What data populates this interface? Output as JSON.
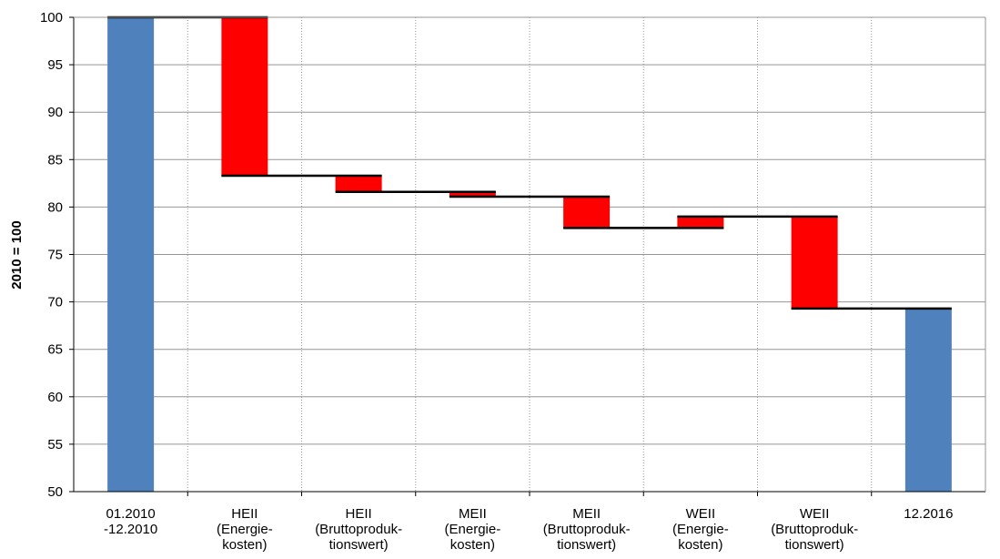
{
  "chart_data": {
    "type": "bar",
    "subtype": "waterfall",
    "ylabel": "2010 = 100",
    "xlabel": "",
    "ylim": [
      50,
      100
    ],
    "yticks": [
      50,
      55,
      60,
      65,
      70,
      75,
      80,
      85,
      90,
      95,
      100
    ],
    "grid": true,
    "categories": [
      [
        "01.2010",
        "-12.2010"
      ],
      [
        "HEII",
        "(Energie-",
        "kosten)"
      ],
      [
        "HEII",
        "(Bruttoproduk-",
        "tionswert)"
      ],
      [
        "MEII",
        "(Energie-",
        "kosten)"
      ],
      [
        "MEII",
        "(Bruttoproduk-",
        "tionswert)"
      ],
      [
        "WEII",
        "(Energie-",
        "kosten)"
      ],
      [
        "WEII",
        "(Bruttoproduk-",
        "tionswert)"
      ],
      [
        "12.2016"
      ]
    ],
    "bars": [
      {
        "kind": "total",
        "start": 50,
        "end": 100
      },
      {
        "kind": "decrease",
        "start": 100,
        "end": 83.3
      },
      {
        "kind": "decrease",
        "start": 83.3,
        "end": 81.6
      },
      {
        "kind": "decrease",
        "start": 81.6,
        "end": 81.1
      },
      {
        "kind": "decrease",
        "start": 81.1,
        "end": 77.8
      },
      {
        "kind": "increase",
        "start": 77.8,
        "end": 79.0
      },
      {
        "kind": "decrease",
        "start": 79.0,
        "end": 69.3
      },
      {
        "kind": "total",
        "start": 50,
        "end": 69.3
      }
    ],
    "colors": {
      "total": "#4f81bd",
      "change": "#ff0000",
      "connector": "#000000",
      "grid": "#969696"
    }
  }
}
